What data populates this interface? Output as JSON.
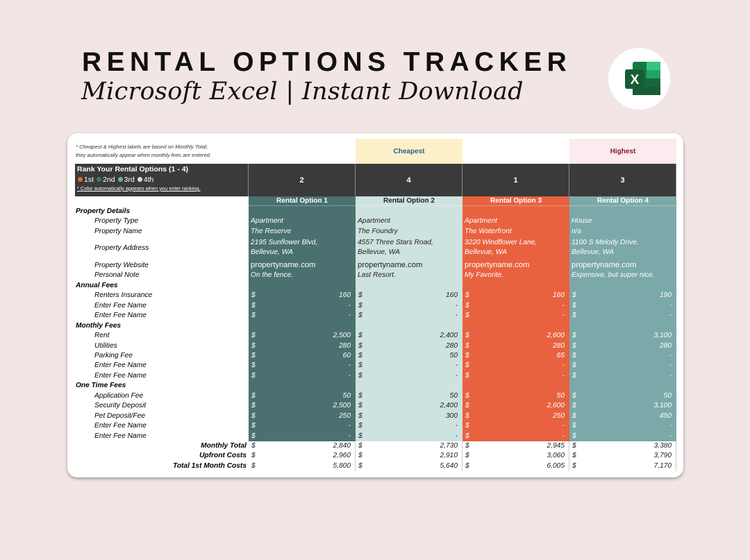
{
  "header": {
    "title": "RENTAL OPTIONS TRACKER",
    "subtitle": "Microsoft Excel | Instant Download",
    "logo_icon": "excel-logo-icon"
  },
  "sheet": {
    "note": [
      "* Cheapest & Highest labels are based on Monthly Total;",
      "they automatically appear when monthly fees are entered."
    ],
    "rank_title": "Rank Your Rental Options (1 - 4)",
    "rank_legend": [
      {
        "label": "1st",
        "color": "#e8623f"
      },
      {
        "label": "2nd",
        "color": "#4a7170"
      },
      {
        "label": "3rd",
        "color": "#7ba9a9"
      },
      {
        "label": "4th",
        "color": "#cde3e0"
      }
    ],
    "rank_note": "* Color automatically appears when you enter ranking.",
    "options": [
      {
        "name": "Rental Option 1",
        "rank": "2",
        "badge": "",
        "color": "#4a7170",
        "text": "#ffffff"
      },
      {
        "name": "Rental Option 2",
        "rank": "4",
        "badge": "Cheapest",
        "badge_bg": "#fdf0c9",
        "badge_color": "#2f5d8c",
        "color": "#cde3e0",
        "text": "#222222"
      },
      {
        "name": "Rental Option 3",
        "rank": "1",
        "badge": "",
        "color": "#e8623f",
        "text": "#ffffff"
      },
      {
        "name": "Rental Option 4",
        "rank": "3",
        "badge": "Highest",
        "badge_bg": "#fbeaee",
        "badge_color": "#8a1c2c",
        "color": "#7ba9a9",
        "text": "#ffffff"
      }
    ],
    "rows": [
      {
        "kind": "sec",
        "label": "Property Details"
      },
      {
        "kind": "text",
        "label": "Property Type",
        "values": [
          "Apartment",
          "Apartment",
          "Apartment",
          "House"
        ]
      },
      {
        "kind": "text",
        "label": "Property Name",
        "values": [
          "The Reserve",
          "The Foundry",
          "The Waterfront",
          "n/a"
        ]
      },
      {
        "kind": "text2",
        "label": "Property Address",
        "values": [
          [
            "2195 Sunflower Blvd,",
            "Bellevue, WA"
          ],
          [
            "4557 Three Stars Road,",
            "Bellevue, WA"
          ],
          [
            "3220 Windflower Lane,",
            "Bellevue, WA"
          ],
          [
            "1100 S Melody Drive,",
            "Bellevue, WA"
          ]
        ]
      },
      {
        "kind": "link",
        "label": "Property Website",
        "values": [
          "propertyname.com",
          "propertyname.com",
          "propertyname.com",
          "propertyname.com"
        ]
      },
      {
        "kind": "text",
        "label": "Personal Note",
        "values": [
          "On the fence.",
          "Last Resort.",
          "My Favorite.",
          "Expensive, but super nice."
        ]
      },
      {
        "kind": "sec",
        "label": "Annual Fees"
      },
      {
        "kind": "money",
        "label": "Renters Insurance",
        "values": [
          "160",
          "160",
          "160",
          "190"
        ]
      },
      {
        "kind": "money",
        "label": "Enter Fee Name",
        "values": [
          "-",
          "-",
          "-",
          "-"
        ]
      },
      {
        "kind": "money",
        "label": "Enter Fee Name",
        "values": [
          "-",
          "-",
          "-",
          "-"
        ]
      },
      {
        "kind": "sec",
        "label": "Monthly Fees"
      },
      {
        "kind": "money",
        "label": "Rent",
        "values": [
          "2,500",
          "2,400",
          "2,600",
          "3,100"
        ]
      },
      {
        "kind": "money",
        "label": "Utilities",
        "values": [
          "280",
          "280",
          "280",
          "280"
        ]
      },
      {
        "kind": "money",
        "label": "Parking Fee",
        "values": [
          "60",
          "50",
          "65",
          "-"
        ]
      },
      {
        "kind": "money",
        "label": "Enter Fee Name",
        "values": [
          "-",
          "-",
          "-",
          "-"
        ]
      },
      {
        "kind": "money",
        "label": "Enter Fee Name",
        "values": [
          "-",
          "-",
          "-",
          "-"
        ]
      },
      {
        "kind": "sec",
        "label": "One Time Fees"
      },
      {
        "kind": "money",
        "label": "Application Fee",
        "values": [
          "50",
          "50",
          "50",
          "50"
        ]
      },
      {
        "kind": "money",
        "label": "Security Deposit",
        "values": [
          "2,500",
          "2,400",
          "2,600",
          "3,100"
        ]
      },
      {
        "kind": "money",
        "label": "Pet Deposit/Fee",
        "values": [
          "250",
          "300",
          "250",
          "450"
        ]
      },
      {
        "kind": "money",
        "label": "Enter Fee Name",
        "values": [
          "-",
          "-",
          "-",
          "-"
        ]
      },
      {
        "kind": "money",
        "label": "Enter Fee Name",
        "values": [
          "-",
          "-",
          "-",
          "-"
        ]
      },
      {
        "kind": "total",
        "label": "Monthly Total",
        "values": [
          "2,840",
          "2,730",
          "2,945",
          "3,380"
        ]
      },
      {
        "kind": "total",
        "label": "Upfront Costs",
        "values": [
          "2,960",
          "2,910",
          "3,060",
          "3,790"
        ]
      },
      {
        "kind": "total",
        "label": "Total 1st Month Costs",
        "values": [
          "5,800",
          "5,640",
          "6,005",
          "7,170"
        ]
      }
    ],
    "currency": "$"
  }
}
